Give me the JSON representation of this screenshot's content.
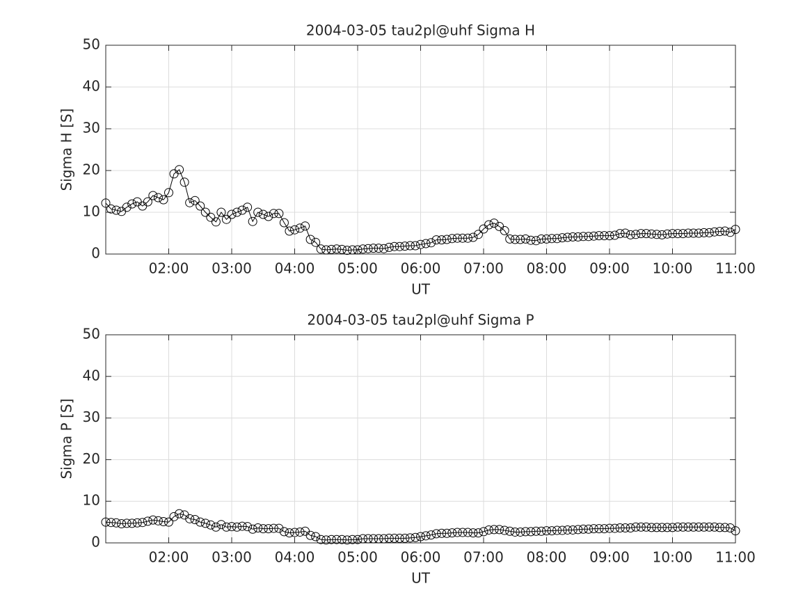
{
  "chart_data": [
    {
      "type": "line",
      "title": "2004-03-05  tau2pl@uhf Sigma H",
      "xlabel": "UT",
      "ylabel": "Sigma H [S]",
      "x": [
        60,
        65,
        70,
        75,
        80,
        85,
        90,
        95,
        100,
        105,
        110,
        115,
        120,
        125,
        130,
        135,
        140,
        145,
        150,
        155,
        160,
        165,
        170,
        175,
        180,
        185,
        190,
        195,
        200,
        205,
        210,
        215,
        220,
        225,
        230,
        235,
        240,
        245,
        250,
        255,
        260,
        265,
        270,
        275,
        280,
        285,
        290,
        295,
        300,
        305,
        310,
        315,
        320,
        325,
        330,
        335,
        340,
        345,
        350,
        355,
        360,
        365,
        370,
        375,
        380,
        385,
        390,
        395,
        400,
        405,
        410,
        415,
        420,
        425,
        430,
        435,
        440,
        445,
        450,
        455,
        460,
        465,
        470,
        475,
        480,
        485,
        490,
        495,
        500,
        505,
        510,
        515,
        520,
        525,
        530,
        535,
        540,
        545,
        550,
        555,
        560,
        565,
        570,
        575,
        580,
        585,
        590,
        595,
        600,
        605,
        610,
        615,
        620,
        625,
        630,
        635,
        640,
        645,
        650,
        655,
        660
      ],
      "series": [
        {
          "color": "#000000",
          "marker": "circle",
          "values": [
            12.2,
            10.8,
            10.5,
            10.2,
            11.2,
            12,
            12.5,
            11.5,
            12.5,
            14,
            13.5,
            13,
            14.7,
            19.2,
            20.2,
            17.2,
            12.3,
            12.8,
            11.5,
            10,
            8.8,
            7.7,
            10,
            8.3,
            9.5,
            10,
            10.5,
            11.2,
            7.8,
            10,
            9.5,
            9,
            9.7,
            9.7,
            7.5,
            5.5,
            5.8,
            6.2,
            6.7,
            3.5,
            2.8,
            1.2,
            1.0,
            1.1,
            1.2,
            1.1,
            0.9,
            1.0,
            1.0,
            1.2,
            1.3,
            1.4,
            1.4,
            1.3,
            1.6,
            1.8,
            1.8,
            1.9,
            2.0,
            2.0,
            2.3,
            2.5,
            2.7,
            3.4,
            3.4,
            3.5,
            3.7,
            3.8,
            3.8,
            3.8,
            4,
            4.7,
            6,
            7,
            7.4,
            6.6,
            5.6,
            3.6,
            3.5,
            3.5,
            3.6,
            3.3,
            3.2,
            3.6,
            3.6,
            3.7,
            3.7,
            3.9,
            4,
            4.1,
            4.1,
            4.2,
            4.2,
            4.3,
            4.4,
            4.4,
            4.4,
            4.5,
            4.9,
            5.0,
            4.6,
            4.7,
            4.9,
            4.9,
            4.8,
            4.7,
            4.6,
            4.8,
            4.9,
            4.9,
            4.9,
            5.0,
            5.0,
            5.0,
            5.1,
            5.1,
            5.3,
            5.4,
            5.5,
            5.2,
            5.9
          ]
        }
      ],
      "xlim": [
        60,
        660
      ],
      "xticks": [
        {
          "value": 120,
          "label": "02:00"
        },
        {
          "value": 180,
          "label": "03:00"
        },
        {
          "value": 240,
          "label": "04:00"
        },
        {
          "value": 300,
          "label": "05:00"
        },
        {
          "value": 360,
          "label": "06:00"
        },
        {
          "value": 420,
          "label": "07:00"
        },
        {
          "value": 480,
          "label": "08:00"
        },
        {
          "value": 540,
          "label": "09:00"
        },
        {
          "value": 600,
          "label": "10:00"
        },
        {
          "value": 660,
          "label": "11:00"
        }
      ],
      "ylim": [
        0,
        50
      ],
      "yticks": [
        0,
        10,
        20,
        30,
        40,
        50
      ],
      "grid": true
    },
    {
      "type": "line",
      "title": "2004-03-05  tau2pl@uhf Sigma P",
      "xlabel": "UT",
      "ylabel": "Sigma P [S]",
      "x": [
        60,
        65,
        70,
        75,
        80,
        85,
        90,
        95,
        100,
        105,
        110,
        115,
        120,
        125,
        130,
        135,
        140,
        145,
        150,
        155,
        160,
        165,
        170,
        175,
        180,
        185,
        190,
        195,
        200,
        205,
        210,
        215,
        220,
        225,
        230,
        235,
        240,
        245,
        250,
        255,
        260,
        265,
        270,
        275,
        280,
        285,
        290,
        295,
        300,
        305,
        310,
        315,
        320,
        325,
        330,
        335,
        340,
        345,
        350,
        355,
        360,
        365,
        370,
        375,
        380,
        385,
        390,
        395,
        400,
        405,
        410,
        415,
        420,
        425,
        430,
        435,
        440,
        445,
        450,
        455,
        460,
        465,
        470,
        475,
        480,
        485,
        490,
        495,
        500,
        505,
        510,
        515,
        520,
        525,
        530,
        535,
        540,
        545,
        550,
        555,
        560,
        565,
        570,
        575,
        580,
        585,
        590,
        595,
        600,
        605,
        610,
        615,
        620,
        625,
        630,
        635,
        640,
        645,
        650,
        655,
        660
      ],
      "series": [
        {
          "color": "#000000",
          "marker": "circle",
          "values": [
            5.0,
            4.9,
            4.8,
            4.6,
            4.7,
            4.7,
            4.8,
            4.9,
            5.2,
            5.5,
            5.3,
            5.1,
            5.0,
            6.3,
            7.0,
            6.7,
            5.8,
            5.6,
            5.0,
            4.7,
            4.3,
            3.8,
            4.4,
            3.8,
            3.9,
            3.8,
            4.0,
            3.9,
            3.3,
            3.6,
            3.4,
            3.4,
            3.5,
            3.5,
            2.7,
            2.4,
            2.5,
            2.6,
            2.8,
            1.8,
            1.5,
            0.8,
            0.7,
            0.8,
            0.8,
            0.8,
            0.7,
            0.8,
            0.8,
            1.0,
            1.0,
            1.0,
            1.0,
            1.0,
            1.1,
            1.1,
            1.1,
            1.1,
            1.2,
            1.3,
            1.5,
            1.7,
            1.9,
            2.2,
            2.3,
            2.3,
            2.4,
            2.5,
            2.5,
            2.5,
            2.4,
            2.4,
            2.7,
            3.1,
            3.2,
            3.2,
            3.0,
            2.8,
            2.6,
            2.6,
            2.7,
            2.7,
            2.8,
            2.8,
            2.9,
            2.9,
            3.0,
            3.0,
            3.1,
            3.1,
            3.2,
            3.3,
            3.3,
            3.4,
            3.4,
            3.4,
            3.5,
            3.5,
            3.6,
            3.6,
            3.6,
            3.8,
            3.8,
            3.8,
            3.7,
            3.7,
            3.7,
            3.7,
            3.7,
            3.8,
            3.8,
            3.8,
            3.8,
            3.8,
            3.8,
            3.8,
            3.8,
            3.7,
            3.7,
            3.6,
            2.9
          ]
        }
      ],
      "xlim": [
        60,
        660
      ],
      "xticks": [
        {
          "value": 120,
          "label": "02:00"
        },
        {
          "value": 180,
          "label": "03:00"
        },
        {
          "value": 240,
          "label": "04:00"
        },
        {
          "value": 300,
          "label": "05:00"
        },
        {
          "value": 360,
          "label": "06:00"
        },
        {
          "value": 420,
          "label": "07:00"
        },
        {
          "value": 480,
          "label": "08:00"
        },
        {
          "value": 540,
          "label": "09:00"
        },
        {
          "value": 600,
          "label": "10:00"
        },
        {
          "value": 660,
          "label": "11:00"
        }
      ],
      "ylim": [
        0,
        50
      ],
      "yticks": [
        0,
        10,
        20,
        30,
        40,
        50
      ],
      "grid": true
    }
  ]
}
